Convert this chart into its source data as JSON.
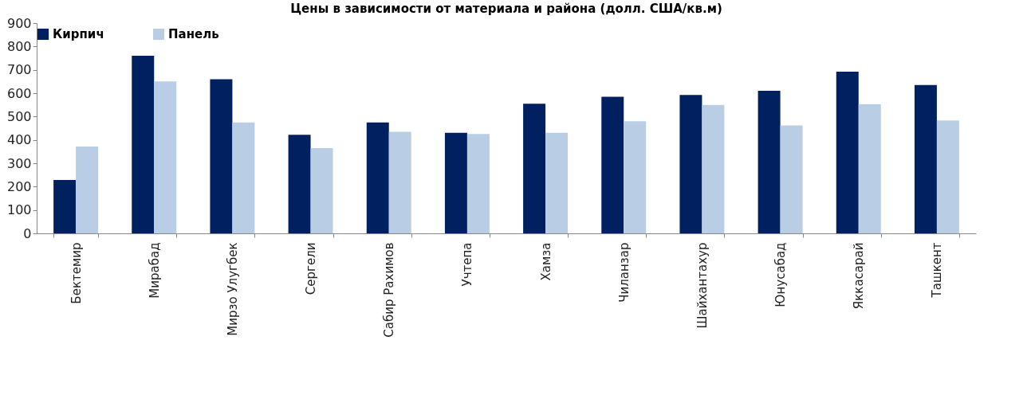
{
  "chart_data": {
    "type": "bar",
    "title": "Цены в зависимости от материала и района (долл. США/кв.м)",
    "categories": [
      "Бектемир",
      "Мирабад",
      "Мирзо Улугбек",
      "Сергели",
      "Сабир Рахимов",
      "Учтепа",
      "Хамза",
      "Чиланзар",
      "Шайхантахур",
      "Юнусабад",
      "Яккасарай",
      "Ташкент"
    ],
    "series": [
      {
        "name": "Кирпич",
        "color": "#002060",
        "values": [
          228,
          760,
          660,
          422,
          475,
          430,
          555,
          585,
          592,
          610,
          692,
          635
        ]
      },
      {
        "name": "Панель",
        "color": "#b9cde5",
        "values": [
          372,
          650,
          475,
          365,
          435,
          425,
          430,
          480,
          550,
          462,
          553,
          483
        ]
      }
    ],
    "ylim": [
      0,
      900
    ],
    "yticks": [
      0,
      100,
      200,
      300,
      400,
      500,
      600,
      700,
      800,
      900
    ],
    "grid": false,
    "legend": "top"
  }
}
